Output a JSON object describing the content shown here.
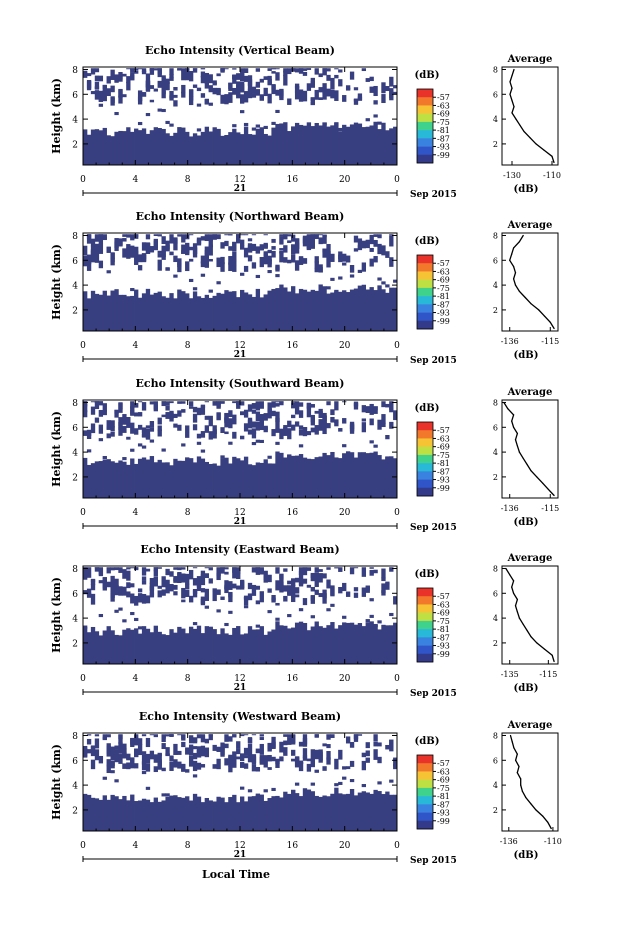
{
  "x_axis_label": "Local Time",
  "colorbar": {
    "unit_label": "(dB)",
    "tick_labels": [
      "-57",
      "-63",
      "-69",
      "-75",
      "-81",
      "-87",
      "-93",
      "-99"
    ],
    "colors": [
      "#e8322a",
      "#f2782c",
      "#f6c335",
      "#bfe042",
      "#3fd28c",
      "#28b8d8",
      "#3a82e0",
      "#2f55c8",
      "#343a8a"
    ]
  },
  "colors": {
    "echo_fill": "#383f80",
    "background": "#ffffff",
    "axis": "#000000"
  },
  "chart_data": [
    {
      "type": "heatmap",
      "title": "Echo Intensity (Vertical Beam)",
      "ylabel": "Height (km)",
      "xlabel": "",
      "x_ticks": [
        "0",
        "4",
        "8",
        "12",
        "16",
        "20",
        "0"
      ],
      "y_ticks": [
        "2",
        "4",
        "6",
        "8"
      ],
      "xlim": [
        0,
        24
      ],
      "ylim": [
        0.3,
        8.2
      ],
      "date_label": "21",
      "month_label": "Sep 2015",
      "cloud_layers": [
        {
          "base_km": 0.3,
          "top_km": 3.0
        },
        {
          "base_km": 5.0,
          "top_km": 8.1
        }
      ],
      "profile": {
        "title": "Average",
        "xlabel": "(dB)",
        "x_ticks": [
          "-130",
          "-110"
        ],
        "y_ticks": [
          "2",
          "4",
          "6",
          "8"
        ],
        "xlim": [
          -135,
          -107
        ],
        "ylim": [
          0.3,
          8.2
        ],
        "heights": [
          0.5,
          1.0,
          1.5,
          2.0,
          2.5,
          3.0,
          3.5,
          4.0,
          4.5,
          5.0,
          5.5,
          6.0,
          6.5,
          7.0,
          7.5,
          8.0
        ],
        "values": [
          -109,
          -110,
          -114,
          -118,
          -121,
          -124,
          -126,
          -128,
          -130,
          -129,
          -130,
          -131,
          -130,
          -131,
          -130,
          -129
        ]
      }
    },
    {
      "type": "heatmap",
      "title": "Echo Intensity (Northward Beam)",
      "ylabel": "Height (km)",
      "xlabel": "",
      "x_ticks": [
        "0",
        "4",
        "8",
        "12",
        "16",
        "20",
        "0"
      ],
      "y_ticks": [
        "2",
        "4",
        "6",
        "8"
      ],
      "xlim": [
        0,
        24
      ],
      "ylim": [
        0.3,
        8.2
      ],
      "date_label": "21",
      "month_label": "Sep 2015",
      "cloud_layers": [
        {
          "base_km": 0.3,
          "top_km": 3.3
        },
        {
          "base_km": 5.0,
          "top_km": 8.1
        }
      ],
      "profile": {
        "title": "Average",
        "xlabel": "(dB)",
        "x_ticks": [
          "-136",
          "-115"
        ],
        "y_ticks": [
          "2",
          "4",
          "6",
          "8"
        ],
        "xlim": [
          -140,
          -111
        ],
        "ylim": [
          0.3,
          8.2
        ],
        "heights": [
          0.5,
          1.0,
          1.5,
          2.0,
          2.5,
          3.0,
          3.5,
          4.0,
          4.5,
          5.0,
          5.5,
          6.0,
          6.5,
          7.0,
          7.5,
          8.0
        ],
        "values": [
          -113,
          -115,
          -118,
          -121,
          -125,
          -128,
          -131,
          -133,
          -134,
          -133,
          -134,
          -136,
          -135,
          -134,
          -131,
          -129
        ]
      }
    },
    {
      "type": "heatmap",
      "title": "Echo Intensity (Southward Beam)",
      "ylabel": "Height (km)",
      "xlabel": "",
      "x_ticks": [
        "0",
        "4",
        "8",
        "12",
        "16",
        "20",
        "0"
      ],
      "y_ticks": [
        "2",
        "4",
        "6",
        "8"
      ],
      "xlim": [
        0,
        24
      ],
      "ylim": [
        0.3,
        8.2
      ],
      "date_label": "21",
      "month_label": "Sep 2015",
      "cloud_layers": [
        {
          "base_km": 0.3,
          "top_km": 3.3
        },
        {
          "base_km": 5.0,
          "top_km": 8.1
        }
      ],
      "profile": {
        "title": "Average",
        "xlabel": "(dB)",
        "x_ticks": [
          "-136",
          "-115"
        ],
        "y_ticks": [
          "2",
          "4",
          "6",
          "8"
        ],
        "xlim": [
          -140,
          -111
        ],
        "ylim": [
          0.3,
          8.2
        ],
        "heights": [
          0.5,
          1.0,
          1.5,
          2.0,
          2.5,
          3.0,
          3.5,
          4.0,
          4.5,
          5.0,
          5.5,
          6.0,
          6.5,
          7.0,
          7.5,
          8.0
        ],
        "values": [
          -113,
          -116,
          -119,
          -122,
          -125,
          -127,
          -129,
          -131,
          -132,
          -133,
          -132,
          -134,
          -135,
          -134,
          -137,
          -139
        ]
      }
    },
    {
      "type": "heatmap",
      "title": "Echo Intensity (Eastward Beam)",
      "ylabel": "Height (km)",
      "xlabel": "",
      "x_ticks": [
        "0",
        "4",
        "8",
        "12",
        "16",
        "20",
        "0"
      ],
      "y_ticks": [
        "2",
        "4",
        "6",
        "8"
      ],
      "xlim": [
        0,
        24
      ],
      "ylim": [
        0.3,
        8.2
      ],
      "date_label": "21",
      "month_label": "Sep 2015",
      "cloud_layers": [
        {
          "base_km": 0.3,
          "top_km": 3.0
        },
        {
          "base_km": 5.0,
          "top_km": 8.1
        }
      ],
      "profile": {
        "title": "Average",
        "xlabel": "(dB)",
        "x_ticks": [
          "-135",
          "-115"
        ],
        "y_ticks": [
          "2",
          "4",
          "6",
          "8"
        ],
        "xlim": [
          -139,
          -110
        ],
        "ylim": [
          0.3,
          8.2
        ],
        "heights": [
          0.5,
          1.0,
          1.5,
          2.0,
          2.5,
          3.0,
          3.5,
          4.0,
          4.5,
          5.0,
          5.5,
          6.0,
          6.5,
          7.0,
          7.5,
          8.0
        ],
        "values": [
          -112,
          -113,
          -117,
          -121,
          -124,
          -126,
          -128,
          -130,
          -131,
          -132,
          -131,
          -133,
          -134,
          -133,
          -135,
          -137
        ]
      }
    },
    {
      "type": "heatmap",
      "title": "Echo Intensity (Westward Beam)",
      "ylabel": "Height (km)",
      "xlabel": "Local Time",
      "x_ticks": [
        "0",
        "4",
        "8",
        "12",
        "16",
        "20",
        "0"
      ],
      "y_ticks": [
        "2",
        "4",
        "6",
        "8"
      ],
      "xlim": [
        0,
        24
      ],
      "ylim": [
        0.3,
        8.2
      ],
      "date_label": "21",
      "month_label": "Sep 2015",
      "cloud_layers": [
        {
          "base_km": 0.3,
          "top_km": 3.0
        },
        {
          "base_km": 5.0,
          "top_km": 8.1
        }
      ],
      "profile": {
        "title": "Average",
        "xlabel": "(dB)",
        "x_ticks": [
          "-136",
          "-110"
        ],
        "y_ticks": [
          "2",
          "4",
          "6",
          "8"
        ],
        "xlim": [
          -140,
          -107
        ],
        "ylim": [
          0.3,
          8.2
        ],
        "heights": [
          0.5,
          1.0,
          1.5,
          2.0,
          2.5,
          3.0,
          3.5,
          4.0,
          4.5,
          5.0,
          5.5,
          6.0,
          6.5,
          7.0,
          7.5,
          8.0
        ],
        "values": [
          -111,
          -113,
          -116,
          -120,
          -123,
          -126,
          -128,
          -129,
          -129,
          -131,
          -130,
          -132,
          -131,
          -133,
          -134,
          -135
        ]
      }
    }
  ]
}
